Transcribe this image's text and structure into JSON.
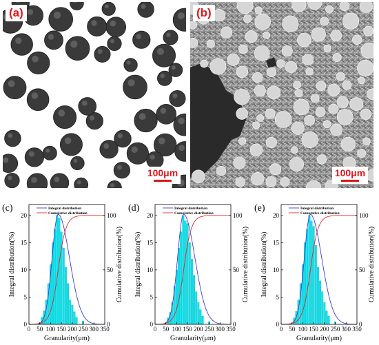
{
  "micrographs": [
    {
      "tag": "(a)",
      "scale_label": "100μm"
    },
    {
      "tag": "(b)",
      "scale_label": "100μm"
    }
  ],
  "colors": {
    "label_red": "#e0161c",
    "bar": "#00e5ee",
    "integral_line": "#3b3bd6",
    "cumulative_line": "#e8262a"
  },
  "chart_data": [
    {
      "panel_tag": "(c)",
      "type": "bar",
      "xlabel": "Granularity(μm)",
      "ylabel": "Integral distribution(%)",
      "y2label": "Cumulative distribution(%)",
      "xlim": [
        0,
        350
      ],
      "ylim": [
        0,
        22
      ],
      "y2lim": [
        0,
        110
      ],
      "xticks": [
        0,
        50,
        100,
        150,
        200,
        250,
        300,
        350
      ],
      "yticks": [
        0,
        5,
        10,
        15,
        20
      ],
      "y2ticks": [
        0,
        50,
        100
      ],
      "legend": [
        "Integral distribution",
        "Cumulative distribution"
      ],
      "legend_position": "top-left",
      "bar_width": 8,
      "bins": [
        50,
        60,
        70,
        80,
        90,
        100,
        110,
        120,
        130,
        140,
        150,
        160,
        170,
        180,
        190,
        200,
        210,
        220,
        250
      ],
      "values": [
        0.3,
        1.3,
        2.5,
        4.5,
        7.5,
        11,
        15,
        17.5,
        20,
        19.5,
        17,
        14,
        10.5,
        7.5,
        4.5,
        3.5,
        2.3,
        1.3,
        0.6
      ],
      "integral_curve": {
        "mean": 135,
        "sd_left": 28,
        "sd_right": 52,
        "peak": 20.2
      },
      "cumulative_curve": {
        "start": 0,
        "end": 100
      }
    },
    {
      "panel_tag": "(d)",
      "type": "bar",
      "xlabel": "Granularity(μm)",
      "ylabel": "Integral distribution(%)",
      "y2label": "Cumulative distribution(%)",
      "xlim": [
        0,
        350
      ],
      "ylim": [
        0,
        22
      ],
      "y2lim": [
        0,
        110
      ],
      "xticks": [
        0,
        50,
        100,
        150,
        200,
        250,
        300,
        350
      ],
      "yticks": [
        0,
        5,
        10,
        15,
        20
      ],
      "y2ticks": [
        0,
        50,
        100
      ],
      "legend": [
        "Integral distribution",
        "Cumulative distribution"
      ],
      "legend_position": "top-left",
      "bar_width": 8,
      "bins": [
        60,
        70,
        80,
        90,
        100,
        110,
        120,
        130,
        140,
        150,
        160,
        170,
        180,
        190,
        200,
        210,
        220,
        250
      ],
      "values": [
        1.2,
        2.2,
        4,
        7,
        10,
        14,
        17,
        20,
        19,
        18.5,
        15,
        12,
        9,
        6,
        4,
        2.7,
        1.5,
        0.5
      ],
      "integral_curve": {
        "mean": 132,
        "sd_left": 28,
        "sd_right": 52,
        "peak": 20.2
      },
      "cumulative_curve": {
        "start": 0,
        "end": 100
      }
    },
    {
      "panel_tag": "(e)",
      "type": "bar",
      "xlabel": "Granularity(μm)",
      "ylabel": "Integral distribution(%)",
      "y2label": "Cumulative distribution(%)",
      "xlim": [
        0,
        350
      ],
      "ylim": [
        0,
        22
      ],
      "y2lim": [
        0,
        110
      ],
      "xticks": [
        0,
        50,
        100,
        150,
        200,
        250,
        300,
        350
      ],
      "yticks": [
        0,
        5,
        10,
        15,
        20
      ],
      "y2ticks": [
        0,
        50,
        100
      ],
      "legend": [
        "Integral distribution",
        "Cumulative distribution"
      ],
      "legend_position": "top-left",
      "bar_width": 8,
      "bins": [
        60,
        70,
        80,
        90,
        100,
        110,
        120,
        130,
        140,
        150,
        160,
        170,
        180,
        190,
        200,
        210,
        220,
        250
      ],
      "values": [
        1.2,
        2.4,
        4.5,
        7.5,
        11,
        15,
        17.5,
        20,
        19,
        18,
        14.5,
        10.5,
        8,
        6,
        4,
        2.5,
        1.5,
        0.5
      ],
      "integral_curve": {
        "mean": 135,
        "sd_left": 28,
        "sd_right": 52,
        "peak": 20.2
      },
      "cumulative_curve": {
        "start": 0,
        "end": 100
      }
    }
  ]
}
